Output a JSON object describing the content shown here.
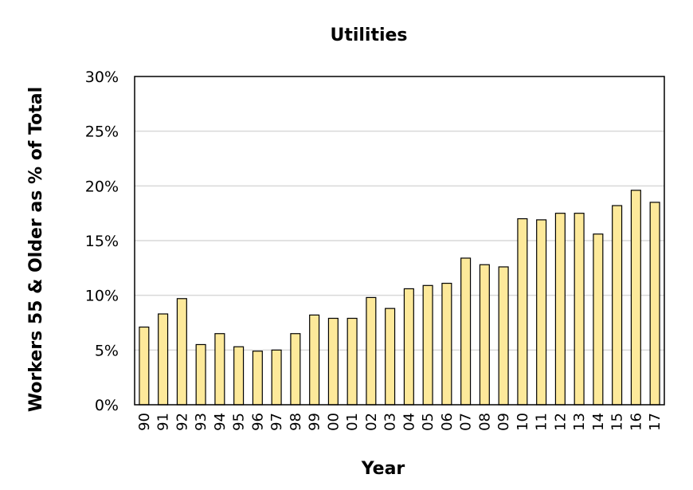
{
  "colors": {
    "bar_fill": "#fde99a",
    "bar_stroke": "#000000",
    "grid": "#d9d9d9",
    "frame": "#000000",
    "background": "#ffffff"
  },
  "chart_data": {
    "type": "bar",
    "title": "Utilities",
    "xlabel": "Year",
    "ylabel": "Workers 55 & Older as % of Total",
    "ylim": [
      0,
      30
    ],
    "yticks": [
      "0%",
      "5%",
      "10%",
      "15%",
      "20%",
      "25%",
      "30%"
    ],
    "grid": true,
    "legend": "none",
    "categories": [
      "90",
      "91",
      "92",
      "93",
      "94",
      "95",
      "96",
      "97",
      "98",
      "99",
      "00",
      "01",
      "02",
      "03",
      "04",
      "05",
      "06",
      "07",
      "08",
      "09",
      "10",
      "11",
      "12",
      "13",
      "14",
      "15",
      "16",
      "17"
    ],
    "values": [
      7.1,
      8.3,
      9.7,
      5.5,
      6.5,
      5.3,
      4.9,
      5.0,
      6.5,
      8.2,
      7.9,
      7.9,
      9.8,
      8.8,
      10.6,
      10.9,
      11.1,
      13.4,
      12.8,
      12.6,
      17.0,
      16.9,
      17.5,
      17.5,
      15.6,
      18.2,
      19.6,
      18.5
    ]
  }
}
